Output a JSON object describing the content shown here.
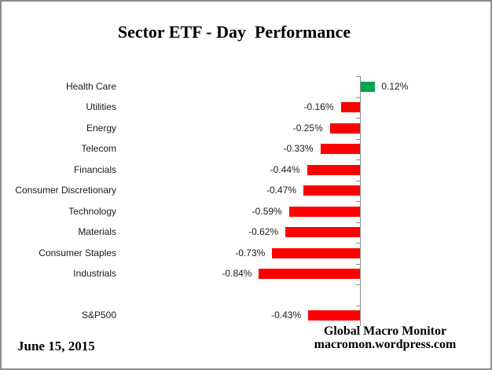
{
  "title": "Sector ETF - Day  Performance",
  "footer": {
    "date": "June 15, 2015",
    "attribution_line1": "Global Macro Monitor",
    "attribution_line2": "macromon.wordpress.com"
  },
  "colors": {
    "positive_bar": "#00A651",
    "negative_bar": "#FF0000",
    "axis": "#8C8C8C",
    "text": "#1A1A1A"
  },
  "chart_data": {
    "type": "bar",
    "orientation": "horizontal",
    "title": "Sector ETF - Day  Performance",
    "xlabel": "",
    "ylabel": "",
    "unit": "%",
    "grid": false,
    "legend": false,
    "blank_row_before_last": true,
    "categories": [
      "Health Care",
      "Utilities",
      "Energy",
      "Telecom",
      "Financials",
      "Consumer Discretionary",
      "Technology",
      "Materials",
      "Consumer Staples",
      "Industrials",
      "S&P500"
    ],
    "values": [
      0.12,
      -0.16,
      -0.25,
      -0.33,
      -0.44,
      -0.47,
      -0.59,
      -0.62,
      -0.73,
      -0.84,
      -0.43
    ],
    "labels": [
      "0.12%",
      "-0.16%",
      "-0.25%",
      "-0.33%",
      "-0.44%",
      "-0.47%",
      "-0.59%",
      "-0.62%",
      "-0.73%",
      "-0.84%",
      "-0.43%"
    ]
  }
}
